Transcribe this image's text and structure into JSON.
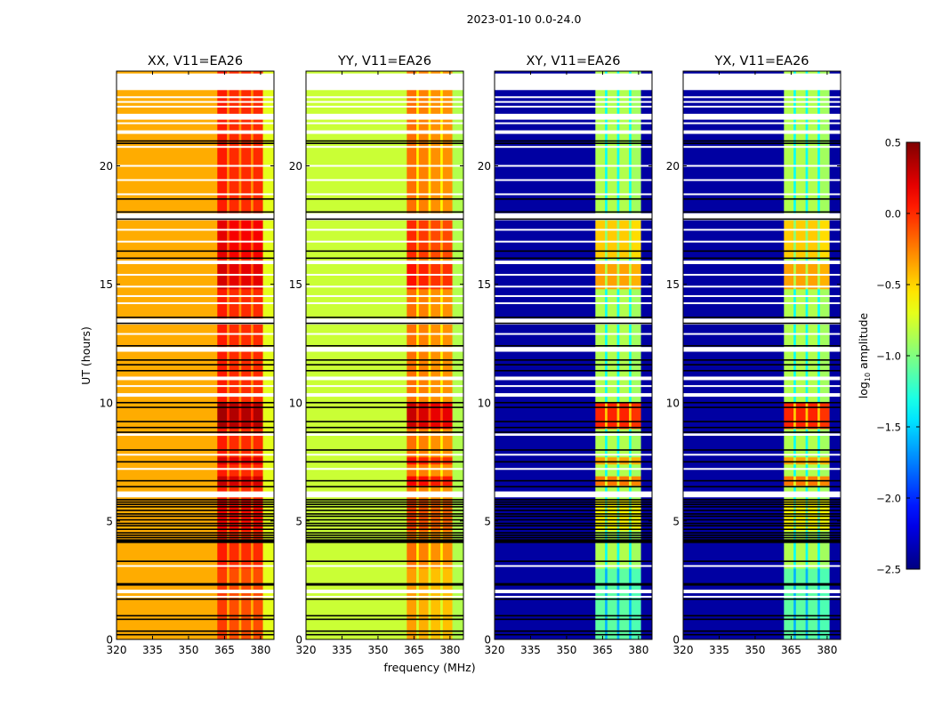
{
  "chart_data": {
    "type": "heatmap",
    "title": "2023-01-10 0.0-24.0",
    "xlabel": "frequency (MHz)",
    "ylabel": "UT (hours)",
    "xlim": [
      320,
      385.6
    ],
    "ylim": [
      0,
      24
    ],
    "xticks": [
      320,
      335,
      350,
      365,
      380
    ],
    "yticks": [
      0,
      5,
      10,
      15,
      20
    ],
    "colorbar": {
      "label_main": "log",
      "label_sub": "10",
      "label_rest": " amplitude",
      "range": [
        -2.5,
        0.5
      ],
      "ticks": [
        "0.5",
        "0.0",
        "−0.5",
        "−1.0",
        "−1.5",
        "−2.0",
        "−2.5"
      ],
      "tick_values": [
        0.5,
        0.0,
        -0.5,
        -1.0,
        -1.5,
        -2.0,
        -2.5
      ],
      "colormap": "jet"
    },
    "freq_edges": [
      320,
      362,
      366,
      367,
      371,
      372,
      376,
      377,
      381,
      385.6
    ],
    "flagged_hours": [
      [
        23.2,
        23.9
      ],
      [
        21.95,
        22.2
      ],
      [
        21.35,
        21.5
      ],
      [
        17.7,
        18.0
      ],
      [
        15.85,
        16.0
      ],
      [
        13.3,
        13.55
      ],
      [
        12.15,
        12.35
      ],
      [
        10.95,
        11.1
      ],
      [
        10.25,
        10.4
      ],
      [
        8.6,
        8.7
      ],
      [
        6.0,
        6.25
      ],
      [
        1.95,
        2.1
      ]
    ],
    "thin_white_hours": [
      22.9,
      22.5,
      22.7,
      21.8,
      20.8,
      20.0,
      19.4,
      18.8,
      17.3,
      16.8,
      15.4,
      14.9,
      14.5,
      14.2,
      12.9,
      10.7,
      7.8,
      7.2,
      3.1,
      1.8
    ],
    "black_line_hours": [
      21.05,
      20.95,
      18.6,
      18.05,
      17.75,
      16.4,
      16.1,
      13.6,
      13.35,
      12.4,
      11.8,
      11.6,
      11.35,
      10.0,
      9.8,
      9.2,
      8.95,
      8.75,
      8.0,
      7.5,
      6.7,
      6.45,
      5.9,
      5.8,
      5.7,
      5.6,
      5.45,
      5.3,
      5.2,
      5.05,
      4.9,
      4.8,
      4.65,
      4.5,
      4.4,
      4.3,
      4.2,
      4.15,
      4.1,
      3.3,
      2.35,
      2.3,
      1.7,
      1.0,
      0.85,
      0.35,
      0.2
    ],
    "row_offsets": [
      {
        "hours": [
          8.9,
          10.0
        ],
        "offset": 0.35
      },
      {
        "hours": [
          6.5,
          6.9
        ],
        "offset": 0.25
      },
      {
        "hours": [
          7.4,
          7.7
        ],
        "offset": 0.2
      },
      {
        "hours": [
          14.8,
          16.0
        ],
        "offset": 0.2
      },
      {
        "hours": [
          16.1,
          17.7
        ],
        "offset": 0.15
      },
      {
        "hours": [
          4.6,
          5.9
        ],
        "offset": 0.1
      },
      {
        "hours": [
          0.0,
          3.0
        ],
        "offset": -0.1
      }
    ],
    "panels": [
      {
        "title": "XX, V11=EA26",
        "column_values": [
          -0.38,
          0.05,
          -0.3,
          0.0,
          -0.3,
          0.0,
          -0.3,
          0.0,
          -0.7
        ],
        "row_gain": 1.0
      },
      {
        "title": "YY, V11=EA26",
        "column_values": [
          -0.78,
          -0.2,
          -0.6,
          -0.25,
          -0.6,
          -0.3,
          -0.6,
          -0.3,
          -0.85
        ],
        "row_gain": 1.4
      },
      {
        "title": "XY, V11=EA26",
        "column_values": [
          -2.4,
          -0.85,
          -1.35,
          -0.85,
          -1.35,
          -0.85,
          -1.35,
          -0.9,
          -2.4
        ],
        "row_gain": 2.5
      },
      {
        "title": "YX, V11=EA26",
        "column_values": [
          -2.4,
          -0.85,
          -1.35,
          -0.85,
          -1.35,
          -0.85,
          -1.35,
          -0.9,
          -2.4
        ],
        "row_gain": 2.5
      }
    ]
  }
}
